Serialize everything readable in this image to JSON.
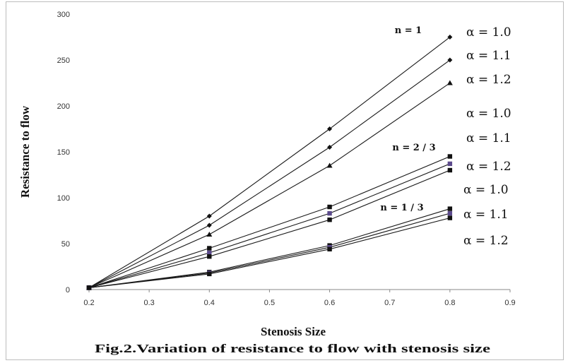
{
  "chart_data": {
    "type": "line",
    "title": "Fig.2.Variation of resistance to flow  with  stenosis size",
    "xlabel": "Stenosis Size",
    "ylabel": "Resistance to flow",
    "xlim": [
      0.2,
      0.9
    ],
    "ylim": [
      0,
      300
    ],
    "xticks": [
      "0.2",
      "0.3",
      "0.4",
      "0.5",
      "0.6",
      "0.7",
      "0.8",
      "0.9"
    ],
    "yticks": [
      "0",
      "50",
      "100",
      "150",
      "200",
      "250",
      "300"
    ],
    "x": [
      0.2,
      0.4,
      0.6,
      0.8
    ],
    "grid": false,
    "series": [
      {
        "group": "n1",
        "marker": "diamond",
        "values": [
          2,
          80,
          175,
          275
        ]
      },
      {
        "group": "n1",
        "marker": "diamond",
        "values": [
          2,
          70,
          155,
          250
        ]
      },
      {
        "group": "n1",
        "marker": "triangle",
        "values": [
          2,
          60,
          135,
          225
        ]
      },
      {
        "group": "n23",
        "marker": "square",
        "values": [
          2,
          45,
          90,
          145
        ]
      },
      {
        "group": "n23",
        "marker": "square",
        "values": [
          2,
          40,
          83,
          137
        ]
      },
      {
        "group": "n23",
        "marker": "square",
        "values": [
          2,
          36,
          76,
          130
        ]
      },
      {
        "group": "n13",
        "marker": "square",
        "values": [
          2,
          19,
          48,
          88
        ]
      },
      {
        "group": "n13",
        "marker": "square",
        "values": [
          2,
          18,
          46,
          83
        ]
      },
      {
        "group": "n13",
        "marker": "square",
        "values": [
          2,
          17,
          44,
          78
        ]
      }
    ],
    "annotations": {
      "n_labels": [
        "n = 1",
        "n = 2 / 3",
        "n = 1 / 3"
      ],
      "alpha_labels": [
        "α = 1.0",
        "α = 1.1",
        "α = 1.2",
        "α = 1.0",
        "α = 1.1",
        "α = 1.2",
        "α = 1.0",
        "α = 1.1",
        "α = 1.2"
      ]
    }
  }
}
